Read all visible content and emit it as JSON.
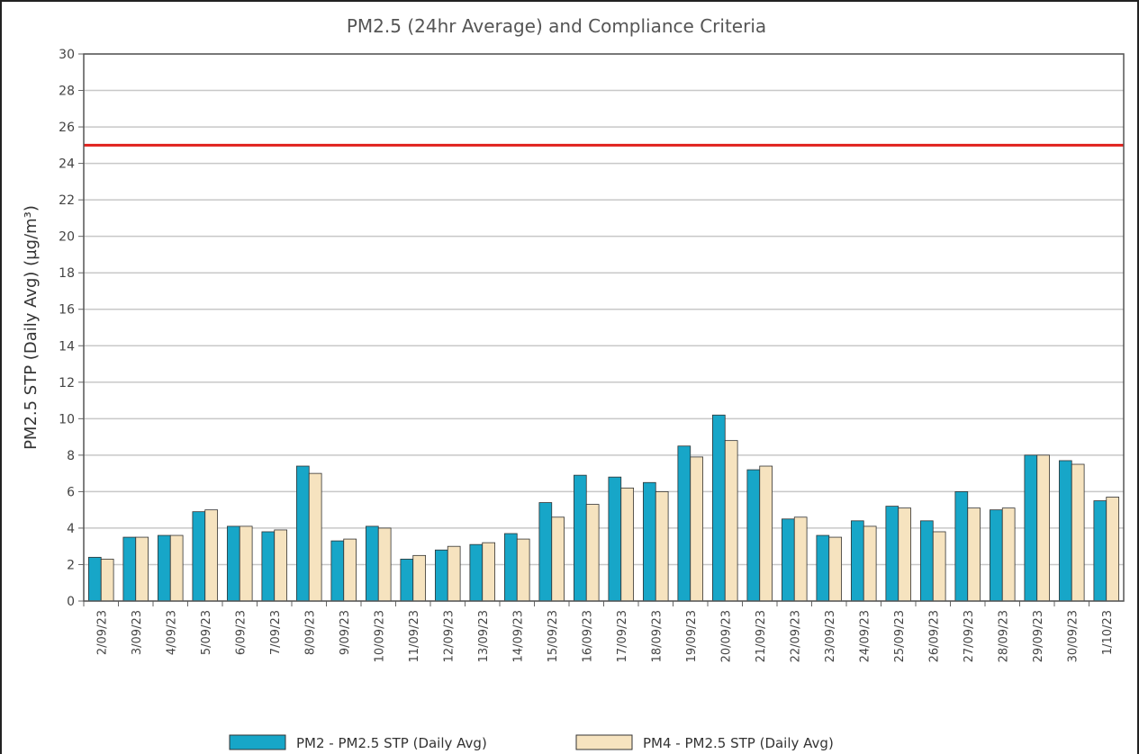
{
  "chart_data": {
    "type": "bar",
    "title": "PM2.5 (24hr Average) and Compliance Criteria",
    "y_label": "PM2.5 STP (Daily Avg) (µg/m³)",
    "categories": [
      "2/09/23",
      "3/09/23",
      "4/09/23",
      "5/09/23",
      "6/09/23",
      "7/09/23",
      "8/09/23",
      "9/09/23",
      "10/09/23",
      "11/09/23",
      "12/09/23",
      "13/09/23",
      "14/09/23",
      "15/09/23",
      "16/09/23",
      "17/09/23",
      "18/09/23",
      "19/09/23",
      "20/09/23",
      "21/09/23",
      "22/09/23",
      "23/09/23",
      "24/09/23",
      "25/09/23",
      "26/09/23",
      "27/09/23",
      "28/09/23",
      "29/09/23",
      "30/09/23",
      "1/10/23"
    ],
    "series": [
      {
        "name": "PM2 - PM2.5 STP (Daily Avg)",
        "color": "#17a6c8",
        "values": [
          2.4,
          3.5,
          3.6,
          4.9,
          4.1,
          3.8,
          7.4,
          3.3,
          4.1,
          2.3,
          2.8,
          3.1,
          3.7,
          5.4,
          6.9,
          6.8,
          6.5,
          8.5,
          10.2,
          7.2,
          4.5,
          3.6,
          4.4,
          5.2,
          4.4,
          6.0,
          5.0,
          8.0,
          7.7,
          5.5
        ]
      },
      {
        "name": "PM4 - PM2.5 STP (Daily Avg)",
        "color": "#f6e3bf",
        "values": [
          2.3,
          3.5,
          3.6,
          5.0,
          4.1,
          3.9,
          7.0,
          3.4,
          4.0,
          2.5,
          3.0,
          3.2,
          3.4,
          4.6,
          5.3,
          6.2,
          6.0,
          7.9,
          8.8,
          7.4,
          4.6,
          3.5,
          4.1,
          5.1,
          3.8,
          5.1,
          5.1,
          8.0,
          7.5,
          5.7
        ]
      }
    ],
    "criteria_line": {
      "value": 25,
      "color": "#e0201c"
    },
    "ylim": [
      0,
      30
    ],
    "yticks": [
      0,
      2,
      4,
      6,
      8,
      10,
      12,
      14,
      16,
      18,
      20,
      22,
      24,
      26,
      28,
      30
    ],
    "grid": true,
    "legend": "bottom"
  }
}
